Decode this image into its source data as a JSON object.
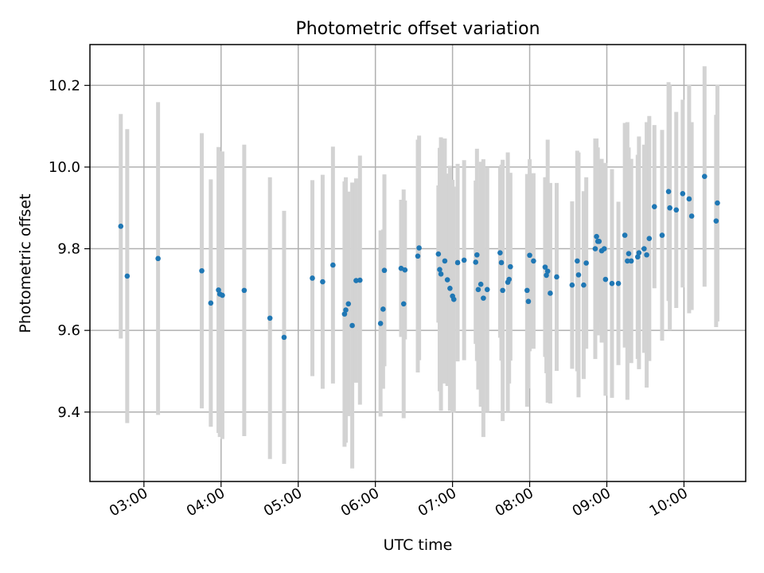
{
  "chart_data": {
    "type": "scatter",
    "title": "Photometric offset variation",
    "xlabel": "UTC time",
    "ylabel": "Photometric offset",
    "xlim": [
      "02:18",
      "10:48"
    ],
    "ylim": [
      9.23,
      10.3
    ],
    "x_ticks": [
      "03:00",
      "04:00",
      "05:00",
      "06:00",
      "07:00",
      "08:00",
      "09:00",
      "10:00"
    ],
    "y_ticks": [
      9.4,
      9.6,
      9.8,
      10.0,
      10.2
    ],
    "y_tick_labels": [
      "9.4",
      "9.6",
      "9.8",
      "10.0",
      "10.2"
    ],
    "grid": true,
    "point_color": "#1f77b4",
    "errorbar_color": "#d3d3d3",
    "series": [
      {
        "x": [
          "02:42",
          "02:47",
          "03:11",
          "03:45",
          "03:52",
          "03:58",
          "03:59",
          "04:01",
          "04:18",
          "04:38",
          "04:49",
          "05:11",
          "05:19",
          "05:27",
          "05:36",
          "05:37",
          "05:39",
          "05:42",
          "05:45",
          "05:48",
          "06:04",
          "06:06",
          "06:07",
          "06:20",
          "06:22",
          "06:23",
          "06:33",
          "06:34",
          "06:49",
          "06:50",
          "06:51",
          "06:54",
          "06:56",
          "06:58",
          "07:00",
          "07:01",
          "07:04",
          "07:09",
          "07:18",
          "07:19",
          "07:20",
          "07:22",
          "07:24",
          "07:27",
          "07:37",
          "07:38",
          "07:39",
          "07:43",
          "07:44",
          "07:45",
          "07:58",
          "07:59",
          "08:00",
          "08:03",
          "08:12",
          "08:13",
          "08:14",
          "08:16",
          "08:21",
          "08:33",
          "08:37",
          "08:38",
          "08:42",
          "08:44",
          "08:51",
          "08:52",
          "08:53",
          "08:54",
          "08:56",
          "08:58",
          "08:59",
          "09:04",
          "09:09",
          "09:14",
          "09:16",
          "09:17",
          "09:19",
          "09:24",
          "09:25",
          "09:29",
          "09:31",
          "09:33",
          "09:37",
          "09:43",
          "09:48",
          "09:49",
          "09:54",
          "09:59",
          "10:04",
          "10:06",
          "10:16",
          "10:25",
          "10:26"
        ],
        "y": [
          9.855,
          9.733,
          9.776,
          9.746,
          9.667,
          9.699,
          9.689,
          9.686,
          9.698,
          9.63,
          9.583,
          9.728,
          9.719,
          9.76,
          9.64,
          9.65,
          9.665,
          9.612,
          9.722,
          9.723,
          9.617,
          9.652,
          9.747,
          9.752,
          9.665,
          9.748,
          9.782,
          9.802,
          9.787,
          9.749,
          9.738,
          9.77,
          9.724,
          9.703,
          9.684,
          9.676,
          9.766,
          9.772,
          9.767,
          9.785,
          9.7,
          9.713,
          9.679,
          9.7,
          9.79,
          9.766,
          9.698,
          9.718,
          9.725,
          9.756,
          9.698,
          9.671,
          9.784,
          9.77,
          9.755,
          9.735,
          9.745,
          9.691,
          9.731,
          9.711,
          9.77,
          9.736,
          9.711,
          9.765,
          9.8,
          9.83,
          9.818,
          9.818,
          9.795,
          9.8,
          9.725,
          9.715,
          9.715,
          9.833,
          9.77,
          9.788,
          9.77,
          9.78,
          9.79,
          9.8,
          9.785,
          9.825,
          9.903,
          9.833,
          9.94,
          9.9,
          9.895,
          9.935,
          9.922,
          9.88,
          9.977,
          9.868,
          9.912
        ],
        "yerr": [
          0.275,
          0.36,
          0.383,
          0.337,
          0.303,
          0.35,
          0.35,
          0.352,
          0.357,
          0.345,
          0.31,
          0.24,
          0.262,
          0.29,
          0.325,
          0.325,
          0.275,
          0.35,
          0.25,
          0.305,
          0.228,
          0.195,
          0.235,
          0.168,
          0.28,
          0.17,
          0.285,
          0.275,
          0.168,
          0.298,
          0.335,
          0.3,
          0.26,
          0.3,
          0.285,
          0.276,
          0.242,
          0.245,
          0.2,
          0.26,
          0.245,
          0.3,
          0.34,
          0.3,
          0.208,
          0.24,
          0.32,
          0.318,
          0.255,
          0.23,
          0.285,
          0.213,
          0.235,
          0.215,
          0.22,
          0.24,
          0.322,
          0.27,
          0.23,
          0.205,
          0.27,
          0.3,
          0.23,
          0.21,
          0.27,
          0.24,
          0.23,
          0.2,
          0.225,
          0.2,
          0.285,
          0.28,
          0.2,
          0.275,
          0.34,
          0.26,
          0.25,
          0.25,
          0.285,
          0.255,
          0.325,
          0.3,
          0.2,
          0.258,
          0.268,
          0.3,
          0.24,
          0.23,
          0.28,
          0.23,
          0.27,
          0.26,
          0.29
        ]
      }
    ]
  }
}
